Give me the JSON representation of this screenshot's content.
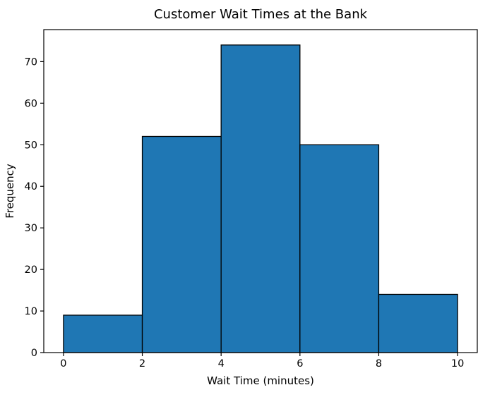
{
  "figure": {
    "background_color": "#ffffff"
  },
  "chart_data": {
    "type": "bar",
    "chart_kind": "histogram",
    "title": "Customer Wait Times at the Bank",
    "xlabel": "Wait Time (minutes)",
    "ylabel": "Frequency",
    "bin_edges": [
      0,
      2,
      4,
      6,
      8,
      10
    ],
    "values": [
      9,
      52,
      74,
      50,
      14
    ],
    "xticks": [
      0,
      2,
      4,
      6,
      8,
      10
    ],
    "yticks": [
      0,
      10,
      20,
      30,
      40,
      50,
      60,
      70
    ],
    "xlim": [
      -0.5,
      10.5
    ],
    "ylim": [
      0,
      77.7
    ],
    "bar_color": "#1f77b4",
    "bar_edge_color": "#000000",
    "axis_color": "#000000",
    "text_color": "#000000",
    "grid": false,
    "legend_position": "none"
  }
}
